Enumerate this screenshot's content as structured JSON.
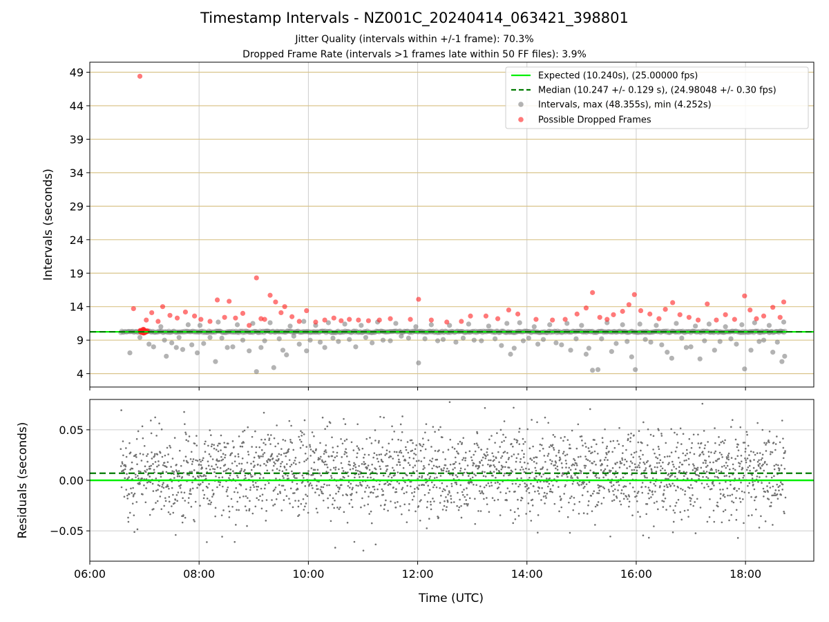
{
  "title": "Timestamp Intervals - NZ001C_20240414_063421_398801",
  "subtitle_1": "Jitter Quality (intervals within +/-1 frame): 70.3%",
  "subtitle_2": "Dropped Frame Rate (intervals >1 frames late within 50 FF files): 3.9%",
  "colors": {
    "expected": "#00ee00",
    "median": "#007a00",
    "intervals": "#808080",
    "dropped": "#ff2020",
    "gold_grid": "#d9c48a",
    "grid": "#cccccc"
  },
  "chart_data": [
    {
      "type": "scatter",
      "ylabel": "Intervals (seconds)",
      "xlim": [
        "06:00",
        "19:15"
      ],
      "ylim": [
        2,
        50.5
      ],
      "yticks": [
        4,
        9,
        14,
        19,
        24,
        29,
        34,
        39,
        44,
        49
      ],
      "grid": true,
      "legend_position": "top-right",
      "legend": [
        "Expected (10.240s), (25.00000 fps)",
        "Median (10.247 +/- 0.129 s), (24.98048 +/- 0.30 fps)",
        "Intervals, max (48.355s), min (4.252s)",
        "Possible Dropped Frames"
      ],
      "expected_line": 10.24,
      "median_line": 10.247,
      "series": [
        {
          "name": "Intervals, max (48.355s), min (4.252s)",
          "points": [
            [
              "06:44",
              7.1
            ],
            [
              "06:55",
              9.4
            ],
            [
              "07:05",
              8.4
            ],
            [
              "07:10",
              8.0
            ],
            [
              "07:18",
              11.0
            ],
            [
              "07:22",
              9.0
            ],
            [
              "07:24",
              6.6
            ],
            [
              "07:30",
              8.6
            ],
            [
              "07:35",
              7.9
            ],
            [
              "07:38",
              9.4
            ],
            [
              "07:42",
              7.6
            ],
            [
              "07:48",
              11.3
            ],
            [
              "07:52",
              8.3
            ],
            [
              "07:58",
              7.1
            ],
            [
              "08:01",
              11.2
            ],
            [
              "08:05",
              8.5
            ],
            [
              "08:12",
              9.4
            ],
            [
              "08:18",
              5.8
            ],
            [
              "08:21",
              11.7
            ],
            [
              "08:25",
              9.3
            ],
            [
              "08:31",
              7.9
            ],
            [
              "08:37",
              8.0
            ],
            [
              "08:42",
              11.3
            ],
            [
              "08:48",
              9.0
            ],
            [
              "08:55",
              7.4
            ],
            [
              "08:59",
              11.5
            ],
            [
              "09:03",
              4.3
            ],
            [
              "09:08",
              7.9
            ],
            [
              "09:12",
              8.9
            ],
            [
              "09:18",
              11.6
            ],
            [
              "09:22",
              4.9
            ],
            [
              "09:28",
              9.2
            ],
            [
              "09:32",
              7.5
            ],
            [
              "09:36",
              6.8
            ],
            [
              "09:40",
              11.1
            ],
            [
              "09:44",
              9.6
            ],
            [
              "09:50",
              8.4
            ],
            [
              "09:55",
              11.8
            ],
            [
              "09:58",
              7.4
            ],
            [
              "10:02",
              9.0
            ],
            [
              "10:08",
              11.2
            ],
            [
              "10:13",
              8.7
            ],
            [
              "10:18",
              7.9
            ],
            [
              "10:22",
              11.6
            ],
            [
              "10:27",
              9.3
            ],
            [
              "10:33",
              8.8
            ],
            [
              "10:40",
              11.4
            ],
            [
              "10:45",
              9.1
            ],
            [
              "10:52",
              8.0
            ],
            [
              "10:58",
              11.2
            ],
            [
              "11:03",
              9.4
            ],
            [
              "11:10",
              8.6
            ],
            [
              "11:16",
              11.7
            ],
            [
              "11:22",
              9.0
            ],
            [
              "11:30",
              8.9
            ],
            [
              "11:36",
              11.5
            ],
            [
              "11:42",
              9.6
            ],
            [
              "11:50",
              9.3
            ],
            [
              "11:58",
              11.0
            ],
            [
              "12:01",
              5.6
            ],
            [
              "12:08",
              9.2
            ],
            [
              "12:15",
              11.3
            ],
            [
              "12:22",
              8.9
            ],
            [
              "12:28",
              9.1
            ],
            [
              "12:35",
              11.2
            ],
            [
              "12:42",
              8.7
            ],
            [
              "12:50",
              9.3
            ],
            [
              "12:56",
              11.4
            ],
            [
              "13:02",
              9.0
            ],
            [
              "13:10",
              8.9
            ],
            [
              "13:18",
              11.1
            ],
            [
              "13:25",
              9.2
            ],
            [
              "13:32",
              8.2
            ],
            [
              "13:38",
              11.5
            ],
            [
              "13:42",
              6.9
            ],
            [
              "13:46",
              7.8
            ],
            [
              "13:52",
              11.6
            ],
            [
              "13:56",
              8.9
            ],
            [
              "14:02",
              9.3
            ],
            [
              "14:08",
              11.0
            ],
            [
              "14:12",
              8.4
            ],
            [
              "14:18",
              9.1
            ],
            [
              "14:25",
              11.3
            ],
            [
              "14:32",
              8.6
            ],
            [
              "14:38",
              8.3
            ],
            [
              "14:44",
              11.5
            ],
            [
              "14:48",
              7.5
            ],
            [
              "14:54",
              9.2
            ],
            [
              "15:00",
              11.2
            ],
            [
              "15:05",
              6.9
            ],
            [
              "15:08",
              7.8
            ],
            [
              "15:12",
              4.5
            ],
            [
              "15:18",
              4.6
            ],
            [
              "15:22",
              9.2
            ],
            [
              "15:28",
              11.6
            ],
            [
              "15:33",
              7.3
            ],
            [
              "15:38",
              8.5
            ],
            [
              "15:45",
              11.3
            ],
            [
              "15:50",
              8.8
            ],
            [
              "15:55",
              6.5
            ],
            [
              "15:59",
              4.6
            ],
            [
              "16:04",
              11.4
            ],
            [
              "16:10",
              9.1
            ],
            [
              "16:16",
              8.7
            ],
            [
              "16:22",
              11.2
            ],
            [
              "16:28",
              8.3
            ],
            [
              "16:34",
              7.2
            ],
            [
              "16:39",
              6.3
            ],
            [
              "16:44",
              11.5
            ],
            [
              "16:50",
              9.3
            ],
            [
              "16:55",
              7.9
            ],
            [
              "17:00",
              8.0
            ],
            [
              "17:05",
              11.1
            ],
            [
              "17:10",
              6.2
            ],
            [
              "17:15",
              8.9
            ],
            [
              "17:20",
              11.4
            ],
            [
              "17:26",
              7.5
            ],
            [
              "17:32",
              8.8
            ],
            [
              "17:38",
              11.0
            ],
            [
              "17:44",
              9.2
            ],
            [
              "17:50",
              8.4
            ],
            [
              "17:56",
              11.3
            ],
            [
              "17:59",
              4.7
            ],
            [
              "18:06",
              7.5
            ],
            [
              "18:10",
              11.6
            ],
            [
              "18:15",
              8.8
            ],
            [
              "18:20",
              9.0
            ],
            [
              "18:26",
              11.2
            ],
            [
              "18:30",
              7.2
            ],
            [
              "18:35",
              8.7
            ],
            [
              "18:40",
              5.8
            ],
            [
              "18:42",
              11.7
            ],
            [
              "18:43",
              6.6
            ]
          ]
        },
        {
          "name": "Possible Dropped Frames",
          "points": [
            [
              "06:55",
              48.4
            ],
            [
              "06:48",
              13.7
            ],
            [
              "07:02",
              12.0
            ],
            [
              "07:08",
              13.1
            ],
            [
              "07:15",
              11.8
            ],
            [
              "07:20",
              14.0
            ],
            [
              "07:28",
              12.7
            ],
            [
              "07:36",
              12.3
            ],
            [
              "07:45",
              13.2
            ],
            [
              "07:55",
              12.6
            ],
            [
              "08:02",
              12.1
            ],
            [
              "08:12",
              11.8
            ],
            [
              "08:20",
              15.0
            ],
            [
              "08:28",
              12.4
            ],
            [
              "08:33",
              14.8
            ],
            [
              "08:40",
              12.3
            ],
            [
              "08:48",
              13.0
            ],
            [
              "08:55",
              11.2
            ],
            [
              "09:03",
              18.3
            ],
            [
              "09:08",
              12.2
            ],
            [
              "09:12",
              12.1
            ],
            [
              "09:18",
              15.7
            ],
            [
              "09:24",
              14.7
            ],
            [
              "09:30",
              13.1
            ],
            [
              "09:34",
              14.0
            ],
            [
              "09:42",
              12.5
            ],
            [
              "09:50",
              11.8
            ],
            [
              "09:58",
              13.4
            ],
            [
              "10:08",
              11.7
            ],
            [
              "10:18",
              12.0
            ],
            [
              "10:28",
              12.3
            ],
            [
              "10:36",
              11.9
            ],
            [
              "10:45",
              12.1
            ],
            [
              "10:55",
              12.0
            ],
            [
              "11:06",
              11.9
            ],
            [
              "11:18",
              12.0
            ],
            [
              "11:30",
              12.2
            ],
            [
              "11:52",
              12.1
            ],
            [
              "12:01",
              15.1
            ],
            [
              "12:15",
              12.0
            ],
            [
              "12:32",
              11.7
            ],
            [
              "12:48",
              11.8
            ],
            [
              "12:58",
              12.6
            ],
            [
              "13:15",
              12.6
            ],
            [
              "13:28",
              12.2
            ],
            [
              "13:40",
              13.5
            ],
            [
              "13:50",
              12.9
            ],
            [
              "14:10",
              12.1
            ],
            [
              "14:28",
              12.0
            ],
            [
              "14:42",
              12.1
            ],
            [
              "14:55",
              12.9
            ],
            [
              "15:05",
              13.8
            ],
            [
              "15:12",
              16.1
            ],
            [
              "15:20",
              12.4
            ],
            [
              "15:28",
              12.1
            ],
            [
              "15:35",
              12.8
            ],
            [
              "15:45",
              13.3
            ],
            [
              "15:52",
              14.3
            ],
            [
              "15:58",
              15.8
            ],
            [
              "16:05",
              13.4
            ],
            [
              "16:15",
              12.9
            ],
            [
              "16:25",
              12.2
            ],
            [
              "16:32",
              13.6
            ],
            [
              "16:40",
              14.6
            ],
            [
              "16:48",
              12.8
            ],
            [
              "16:58",
              12.4
            ],
            [
              "17:08",
              12.0
            ],
            [
              "17:18",
              14.4
            ],
            [
              "17:28",
              12.0
            ],
            [
              "17:38",
              12.8
            ],
            [
              "17:48",
              12.1
            ],
            [
              "17:59",
              15.6
            ],
            [
              "18:05",
              13.5
            ],
            [
              "18:12",
              12.2
            ],
            [
              "18:20",
              12.6
            ],
            [
              "18:30",
              13.9
            ],
            [
              "18:38",
              12.4
            ],
            [
              "18:42",
              14.7
            ]
          ]
        }
      ]
    },
    {
      "type": "scatter",
      "xlabel": "Time (UTC)",
      "ylabel": "Residuals (seconds)",
      "xlim": [
        "06:00",
        "19:15"
      ],
      "xticks": [
        "06:00",
        "08:00",
        "10:00",
        "12:00",
        "14:00",
        "16:00",
        "18:00"
      ],
      "ylim": [
        -0.08,
        0.08
      ],
      "yticks": [
        0.05,
        0.0,
        -0.05
      ],
      "ytick_labels": [
        "0.05",
        "0.00",
        "−0.05"
      ],
      "grid": true,
      "expected_line": 0.0,
      "median_line": 0.007
    }
  ]
}
